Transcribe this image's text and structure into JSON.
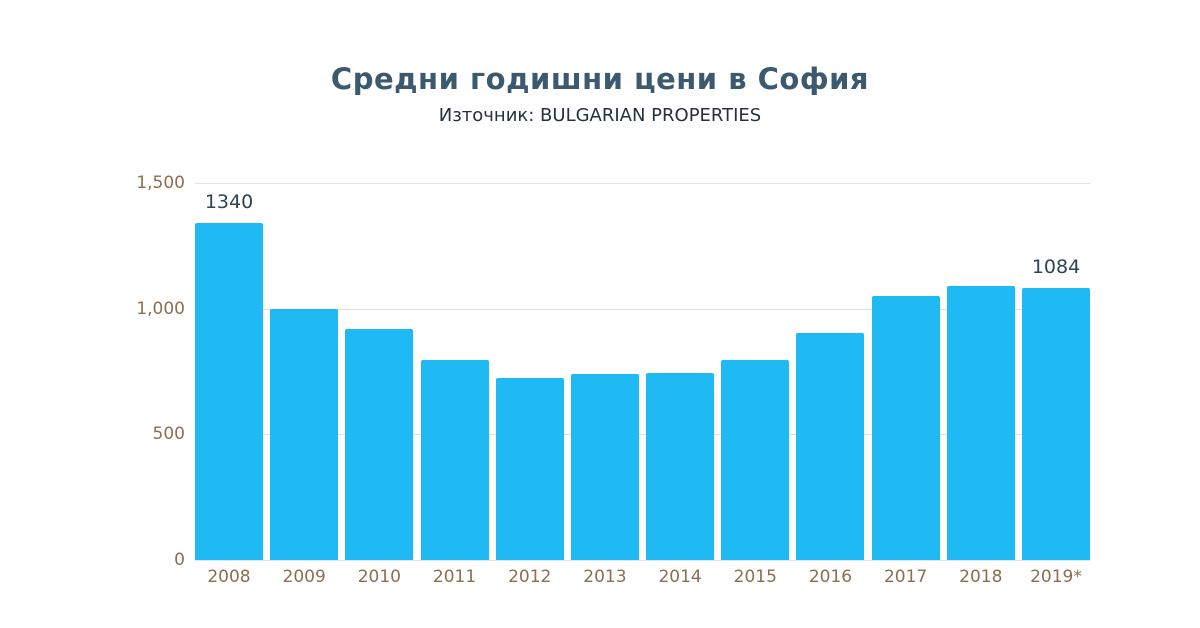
{
  "title": "Средни годишни цени в София",
  "subtitle": "Източник: BULGARIAN PROPERTIES",
  "chart_data": {
    "type": "bar",
    "title": "Средни годишни цени в София",
    "subtitle": "Източник: BULGARIAN PROPERTIES",
    "categories": [
      "2008",
      "2009",
      "2010",
      "2011",
      "2012",
      "2013",
      "2014",
      "2015",
      "2016",
      "2017",
      "2018",
      "2019*"
    ],
    "values": [
      1340,
      1000,
      920,
      795,
      725,
      740,
      745,
      795,
      905,
      1050,
      1090,
      1084
    ],
    "data_labels": [
      {
        "index": 0,
        "text": "1340"
      },
      {
        "index": 11,
        "text": "1084"
      }
    ],
    "xlabel": "",
    "ylabel": "",
    "ylim": [
      0,
      1500
    ],
    "yticks": [
      {
        "value": 1500,
        "label": "1,500"
      },
      {
        "value": 1000,
        "label": "1,000"
      },
      {
        "value": 500,
        "label": "500"
      },
      {
        "value": 0,
        "label": "0"
      }
    ],
    "grid": true,
    "legend_position": "none",
    "bar_color": "#1fb9f4",
    "label_color": "#8d6e4e",
    "value_label_color": "#2f4356",
    "grid_color": "#e2e2e2"
  }
}
